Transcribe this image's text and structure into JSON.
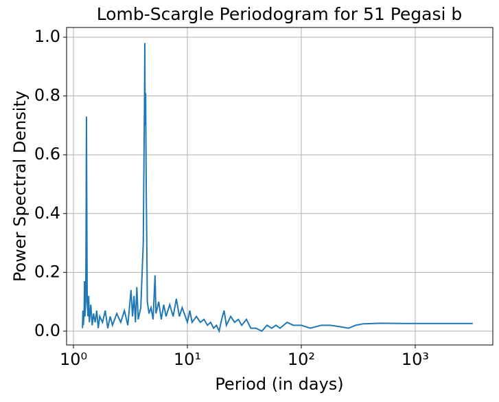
{
  "chart_data": {
    "type": "line",
    "title": "Lomb-Scargle Periodogram for 51 Pegasi b",
    "xlabel": "Period (in days)",
    "ylabel": "Power Spectral Density",
    "xscale": "log",
    "grid": true,
    "xlim": [
      0.87,
      4800
    ],
    "ylim": [
      -0.047,
      1.033
    ],
    "xticks": [
      {
        "value": 1,
        "label": "10⁰"
      },
      {
        "value": 10,
        "label": "10¹"
      },
      {
        "value": 100,
        "label": "10²"
      },
      {
        "value": 1000,
        "label": "10³"
      }
    ],
    "yticks": [
      {
        "value": 0,
        "label": "0.0"
      },
      0.2,
      0.4,
      0.6,
      0.8,
      {
        "value": 1,
        "label": "1.0"
      }
    ],
    "x": [
      1.2,
      1.21,
      1.22,
      1.24,
      1.25,
      1.26,
      1.28,
      1.29,
      1.3,
      1.31,
      1.32,
      1.34,
      1.36,
      1.38,
      1.42,
      1.46,
      1.5,
      1.55,
      1.6,
      1.65,
      1.7,
      1.8,
      1.9,
      2.0,
      2.1,
      2.2,
      2.4,
      2.6,
      2.8,
      3.0,
      3.2,
      3.3,
      3.4,
      3.5,
      3.6,
      3.7,
      3.9,
      4.1,
      4.2,
      4.23,
      4.26,
      4.3,
      4.35,
      4.45,
      4.6,
      4.8,
      5.0,
      5.2,
      5.3,
      5.6,
      5.9,
      6.2,
      6.5,
      7.0,
      7.5,
      8.0,
      8.5,
      9.0,
      10,
      10.5,
      11,
      12,
      13,
      14,
      15,
      16,
      17,
      18,
      19,
      20,
      21,
      22,
      24,
      26,
      28,
      30,
      33,
      36,
      40,
      45,
      50,
      55,
      60,
      65,
      75,
      85,
      100,
      120,
      150,
      180,
      220,
      260,
      300,
      350,
      500,
      800,
      1500,
      3200
    ],
    "series": [
      {
        "color": "#1f77b4",
        "values": [
          0.01,
          0.07,
          0.02,
          0.06,
          0.17,
          0.05,
          0.1,
          0.32,
          0.73,
          0.4,
          0.1,
          0.05,
          0.12,
          0.03,
          0.09,
          0.02,
          0.06,
          0.03,
          0.07,
          0.01,
          0.05,
          0.03,
          0.07,
          0.01,
          0.05,
          0.02,
          0.06,
          0.03,
          0.07,
          0.02,
          0.14,
          0.05,
          0.12,
          0.03,
          0.15,
          0.04,
          0.08,
          0.3,
          0.78,
          0.98,
          0.7,
          0.81,
          0.5,
          0.1,
          0.06,
          0.08,
          0.04,
          0.19,
          0.06,
          0.1,
          0.04,
          0.09,
          0.05,
          0.09,
          0.05,
          0.11,
          0.05,
          0.08,
          0.03,
          0.07,
          0.03,
          0.05,
          0.03,
          0.04,
          0.02,
          0.03,
          0.01,
          0.02,
          0.0,
          0.04,
          0.07,
          0.02,
          0.05,
          0.03,
          0.04,
          0.02,
          0.04,
          0.01,
          0.01,
          0.0,
          0.02,
          0.01,
          0.02,
          0.01,
          0.03,
          0.02,
          0.02,
          0.01,
          0.02,
          0.02,
          0.015,
          0.01,
          0.02,
          0.025,
          0.027,
          0.026,
          0.026,
          0.026
        ]
      }
    ]
  }
}
